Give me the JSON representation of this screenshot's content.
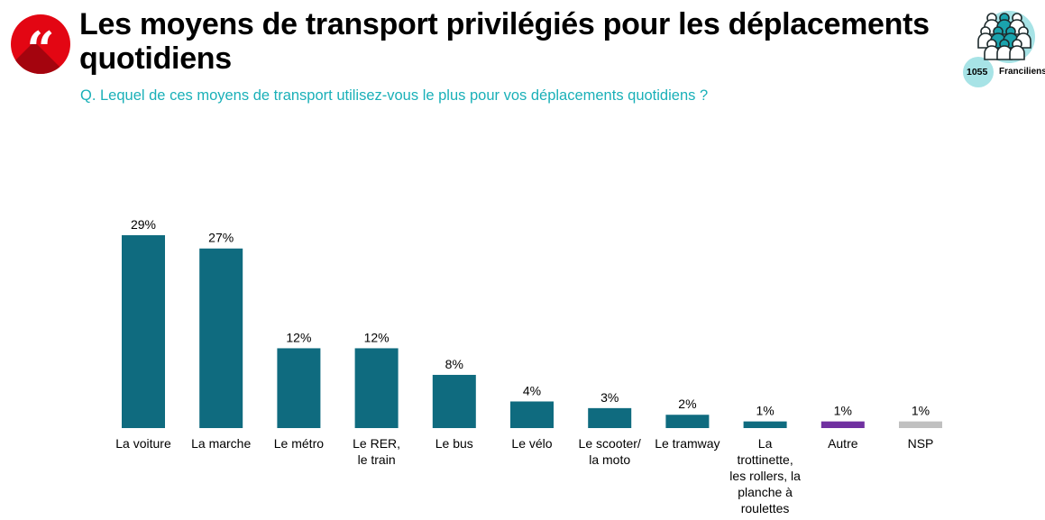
{
  "header": {
    "title": "Les moyens de transport privilégiés pour les déplacements quotidiens",
    "question": "Q. Lequel de ces moyens de transport utilisez-vous le plus pour vos déplacements quotidiens ?",
    "quote_icon": "quote-icon",
    "sample_size": "1055",
    "sample_label": "Franciliens"
  },
  "colors": {
    "brand_red": "#e30613",
    "accent_teal": "#1ab0b8",
    "bar_default": "#0f6b7f",
    "bar_other": "#7030a0",
    "bar_nsp": "#c0c0c0"
  },
  "chart_data": {
    "type": "bar",
    "title": "Les moyens de transport privilégiés pour les déplacements quotidiens",
    "xlabel": "",
    "ylabel": "",
    "ylim": [
      0,
      30
    ],
    "grid": false,
    "legend": "none",
    "categories": [
      "La voiture",
      "La marche",
      "Le métro",
      "Le RER, le train",
      "Le bus",
      "Le vélo",
      "Le scooter/ la moto",
      "Le tramway",
      "La trottinette, les rollers, la planche à roulettes",
      "Autre",
      "NSP"
    ],
    "category_lines": [
      [
        "La voiture"
      ],
      [
        "La marche"
      ],
      [
        "Le métro"
      ],
      [
        "Le RER,",
        "le train"
      ],
      [
        "Le bus"
      ],
      [
        "Le vélo"
      ],
      [
        "Le scooter/",
        "la moto"
      ],
      [
        "Le tramway"
      ],
      [
        "La",
        "trottinette,",
        "les rollers, la",
        "planche à",
        "roulettes"
      ],
      [
        "Autre"
      ],
      [
        "NSP"
      ]
    ],
    "values": [
      29,
      27,
      12,
      12,
      8,
      4,
      3,
      2,
      1,
      1,
      1
    ],
    "data_labels": [
      "29%",
      "27%",
      "12%",
      "12%",
      "8%",
      "4%",
      "3%",
      "2%",
      "1%",
      "1%",
      "1%"
    ],
    "bar_colors": [
      "#0f6b7f",
      "#0f6b7f",
      "#0f6b7f",
      "#0f6b7f",
      "#0f6b7f",
      "#0f6b7f",
      "#0f6b7f",
      "#0f6b7f",
      "#0f6b7f",
      "#7030a0",
      "#c0c0c0"
    ],
    "unit": "%"
  }
}
